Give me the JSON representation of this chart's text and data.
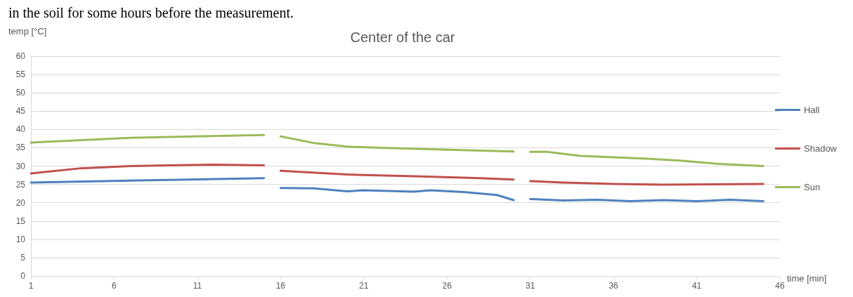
{
  "chart_data": {
    "type": "line",
    "title": "Center of the car",
    "xlabel": "time [min]",
    "ylabel": "temp [°C]",
    "annotations": [
      "in the soil for some hours before the measurement."
    ],
    "xlim": [
      1,
      46
    ],
    "xticks": [
      1,
      6,
      11,
      16,
      21,
      26,
      31,
      36,
      41,
      46
    ],
    "ylim": [
      0,
      60
    ],
    "yticks": [
      0,
      5,
      10,
      15,
      20,
      25,
      30,
      35,
      40,
      45,
      50,
      55,
      60
    ],
    "grid": "y",
    "legend": "right",
    "marker": "none",
    "line_style": "solid",
    "series": [
      {
        "name": "Hall",
        "color": "#4f81bd",
        "x": [
          1,
          8,
          15,
          15.5,
          16,
          18,
          20,
          21,
          24,
          25,
          27,
          29,
          30,
          30.5,
          31,
          33,
          35,
          37,
          39,
          41,
          43,
          45
        ],
        "values": [
          25.5,
          26.1,
          26.7,
          null,
          24.0,
          23.9,
          23.1,
          23.4,
          23.0,
          23.4,
          22.9,
          22.1,
          20.7,
          null,
          21.0,
          20.6,
          20.8,
          20.4,
          20.7,
          20.4,
          20.8,
          20.4
        ]
      },
      {
        "name": "Shadow",
        "color": "#c0504d",
        "x": [
          1,
          4,
          7,
          12,
          15,
          15.5,
          16,
          20,
          24,
          28,
          30,
          30.5,
          31,
          33,
          36,
          39,
          42,
          45
        ],
        "values": [
          28.0,
          29.4,
          30.0,
          30.4,
          30.2,
          null,
          28.7,
          27.7,
          27.2,
          26.7,
          26.3,
          null,
          25.9,
          25.5,
          25.1,
          24.9,
          25.0,
          25.1
        ]
      },
      {
        "name": "Sun",
        "color": "#9bbb59",
        "x": [
          1,
          7,
          15,
          15.5,
          16,
          18,
          20,
          22,
          25,
          28,
          30,
          30.5,
          31,
          32,
          34,
          36,
          38,
          40,
          42,
          45
        ],
        "values": [
          36.4,
          37.7,
          38.5,
          null,
          38.1,
          36.3,
          35.3,
          35.0,
          34.6,
          34.2,
          34.0,
          null,
          33.9,
          33.9,
          32.8,
          32.4,
          32.0,
          31.5,
          30.7,
          30.0
        ]
      }
    ]
  }
}
